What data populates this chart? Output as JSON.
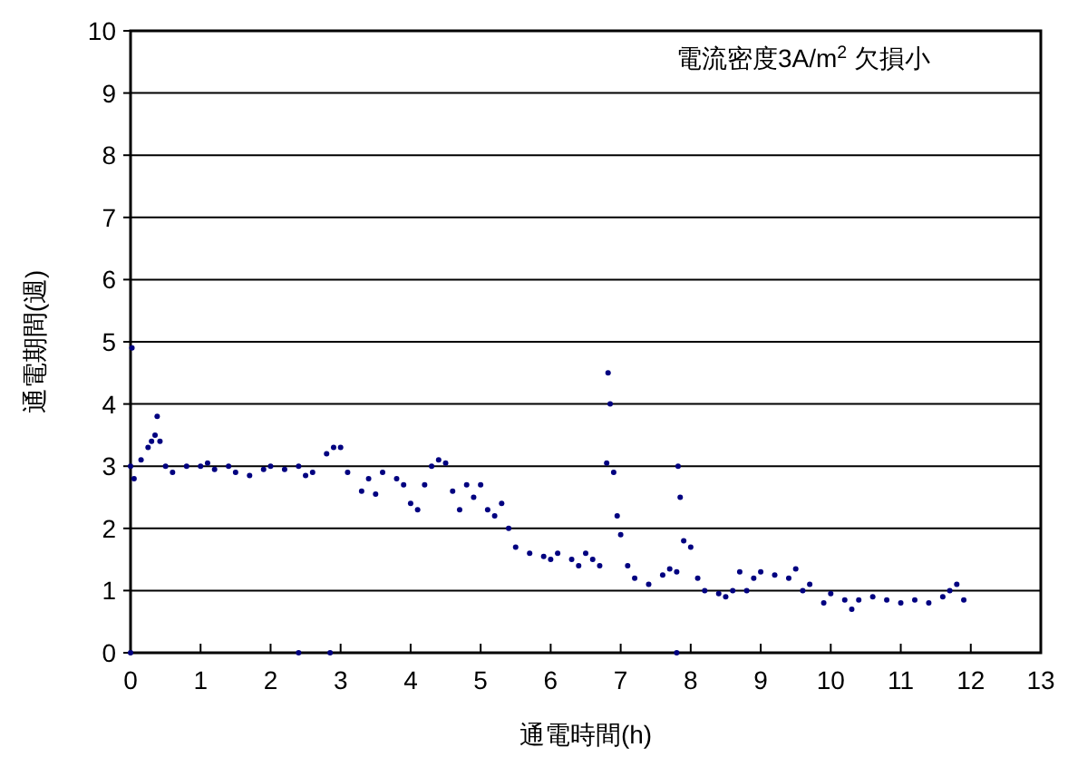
{
  "chart_data": {
    "type": "scatter",
    "title": "電流密度3A/m$^{2}$ 欠損小",
    "xlabel": "通電時間(h)",
    "ylabel": "通電期間(週)",
    "x": [
      0,
      0.02,
      0.05,
      0.15,
      0.25,
      0.3,
      0.35,
      0.38,
      0.42,
      0.5,
      0.6,
      0.8,
      1.0,
      1.1,
      1.2,
      1.4,
      1.5,
      1.7,
      1.9,
      2.0,
      2.2,
      2.4,
      2.5,
      2.6,
      2.8,
      2.9,
      3.0,
      3.1,
      3.3,
      3.4,
      3.5,
      3.6,
      3.8,
      3.9,
      4.0,
      4.1,
      4.2,
      4.3,
      4.4,
      4.5,
      4.6,
      4.7,
      4.8,
      4.9,
      5.0,
      5.1,
      5.2,
      5.3,
      5.4,
      5.5,
      5.7,
      5.9,
      6.0,
      6.1,
      6.3,
      6.4,
      6.5,
      6.6,
      6.7,
      6.8,
      6.82,
      6.85,
      6.9,
      6.95,
      7.0,
      7.1,
      7.2,
      7.4,
      7.6,
      7.7,
      7.8,
      7.82,
      7.85,
      7.9,
      8.0,
      8.1,
      8.2,
      8.4,
      8.5,
      8.6,
      8.7,
      8.8,
      8.9,
      9.0,
      9.2,
      9.4,
      9.5,
      9.6,
      9.7,
      9.9,
      10.0,
      10.2,
      10.3,
      10.4,
      10.6,
      10.8,
      11.0,
      11.2,
      11.4,
      11.6,
      11.7,
      11.8,
      11.9,
      0,
      2.4,
      2.85,
      7.8
    ],
    "values": [
      3.0,
      4.9,
      2.8,
      3.1,
      3.3,
      3.4,
      3.5,
      3.8,
      3.4,
      3.0,
      2.9,
      3.0,
      3.0,
      3.05,
      2.95,
      3.0,
      2.9,
      2.85,
      2.95,
      3.0,
      2.95,
      3.0,
      2.85,
      2.9,
      3.2,
      3.3,
      3.3,
      2.9,
      2.6,
      2.8,
      2.55,
      2.9,
      2.8,
      2.7,
      2.4,
      2.3,
      2.7,
      3.0,
      3.1,
      3.05,
      2.6,
      2.3,
      2.7,
      2.5,
      2.7,
      2.3,
      2.2,
      2.4,
      2.0,
      1.7,
      1.6,
      1.55,
      1.5,
      1.6,
      1.5,
      1.4,
      1.6,
      1.5,
      1.4,
      3.05,
      4.5,
      4.0,
      2.9,
      2.2,
      1.9,
      1.4,
      1.2,
      1.1,
      1.25,
      1.35,
      1.3,
      3.0,
      2.5,
      1.8,
      1.7,
      1.2,
      1.0,
      0.95,
      0.9,
      1.0,
      1.3,
      1.0,
      1.2,
      1.3,
      1.25,
      1.2,
      1.35,
      1.0,
      1.1,
      0.8,
      0.95,
      0.85,
      0.7,
      0.85,
      0.9,
      0.85,
      0.8,
      0.85,
      0.8,
      0.9,
      1.0,
      1.1,
      0.85,
      0,
      0,
      0,
      0
    ],
    "color": "#000080",
    "marker": "circle",
    "grid": "y",
    "xlim": [
      0,
      13
    ],
    "xticks": [
      0,
      1,
      2,
      3,
      4,
      5,
      6,
      7,
      8,
      9,
      10,
      11,
      12,
      13
    ],
    "ylim": [
      0,
      10
    ],
    "yticks": [
      0,
      1,
      2,
      3,
      4,
      5,
      6,
      7,
      8,
      9,
      10
    ]
  }
}
